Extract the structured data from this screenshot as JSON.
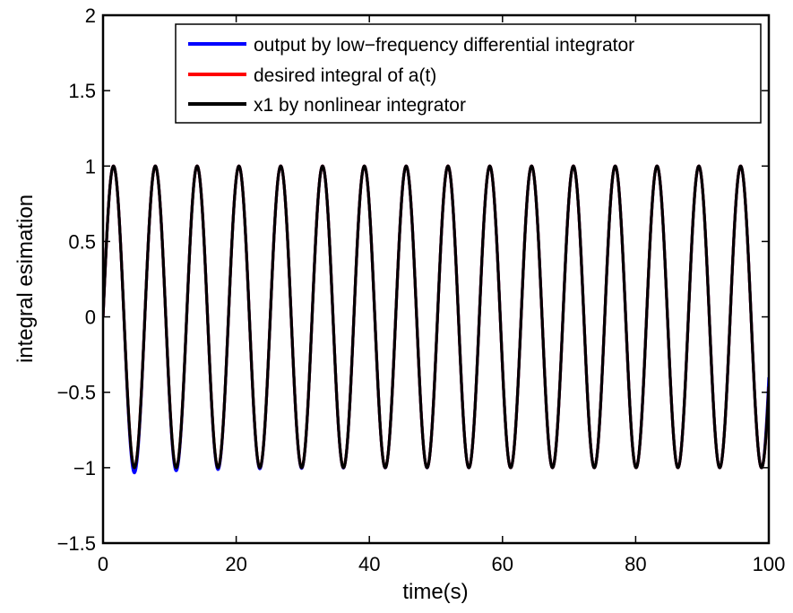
{
  "chart_data": {
    "type": "line",
    "title": "",
    "xlabel": "time(s)",
    "ylabel": "integral esimation",
    "xlim": [
      0,
      100
    ],
    "ylim": [
      -1.5,
      2
    ],
    "xticks": [
      "0",
      "20",
      "40",
      "60",
      "80",
      "100"
    ],
    "yticks": [
      "−1.5",
      "−1",
      "−0.5",
      "0",
      "0.5",
      "1",
      "1.5",
      "2"
    ],
    "grid": false,
    "legend_position": "top-right",
    "signal": {
      "shape": "sinusoid",
      "amplitude": 1,
      "period_s": 6.28,
      "cycles": 16
    },
    "series": [
      {
        "name": "output by low−frequency differential integrator",
        "color": "#0000ff",
        "early_troughs": [
          {
            "x": 4.8,
            "y": -1.05
          },
          {
            "x": 11.0,
            "y": -1.03
          },
          {
            "x": 17.3,
            "y": -1.01
          }
        ],
        "end_point": {
          "x": 100,
          "y": -0.4
        }
      },
      {
        "name": "desired integral of a(t)",
        "color": "#ff0000"
      },
      {
        "name": "x1 by nonlinear integrator",
        "color": "#000000"
      }
    ]
  }
}
